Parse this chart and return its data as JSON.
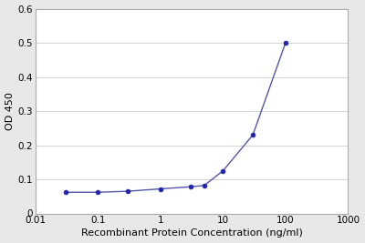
{
  "x": [
    0.03,
    0.1,
    0.3,
    1.0,
    3.0,
    5.0,
    10.0,
    30.0,
    100.0
  ],
  "y": [
    0.062,
    0.062,
    0.065,
    0.072,
    0.078,
    0.082,
    0.125,
    0.23,
    0.5
  ],
  "line_color": "#5555aa",
  "marker_color": "#2222aa",
  "marker_size": 3.5,
  "line_width": 1.0,
  "xlabel": "Recombinant Protein Concentration (ng/ml)",
  "ylabel": "OD 450",
  "xlim": [
    0.01,
    1000
  ],
  "ylim": [
    0,
    0.6
  ],
  "yticks": [
    0,
    0.1,
    0.2,
    0.3,
    0.4,
    0.5,
    0.6
  ],
  "xtick_vals": [
    0.01,
    0.1,
    1,
    10,
    100,
    1000
  ],
  "xtick_labels": [
    "0.01",
    "0.1",
    "1",
    "10",
    "100",
    "1000"
  ],
  "figure_bg": "#e8e8e8",
  "plot_bg": "#ffffff",
  "grid_color": "#cccccc",
  "spine_color": "#aaaaaa",
  "xlabel_fontsize": 8,
  "ylabel_fontsize": 8,
  "tick_fontsize": 7.5
}
